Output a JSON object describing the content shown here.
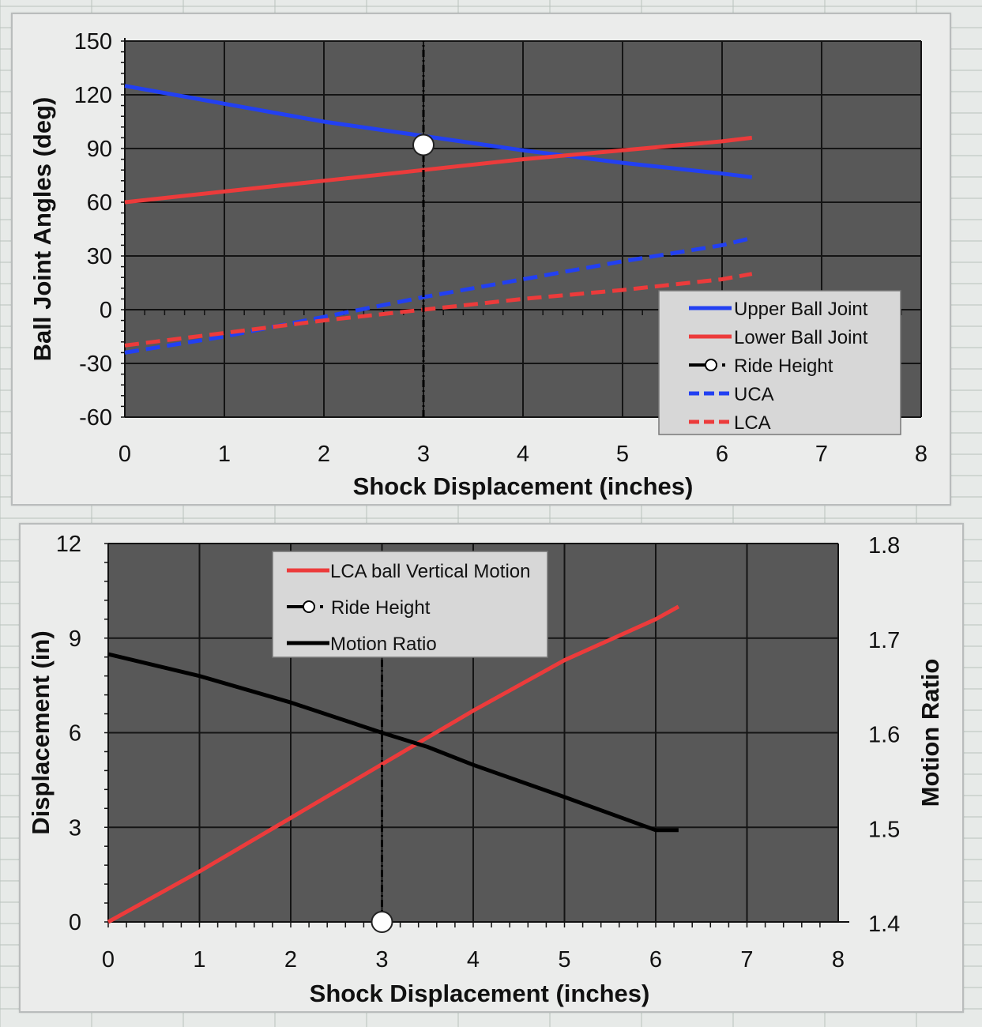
{
  "chart_data": [
    {
      "type": "line",
      "xlabel": "Shock Displacement (inches)",
      "ylabel": "Ball Joint Angles (deg)",
      "xlim": [
        0,
        8
      ],
      "ylim": [
        -60,
        150
      ],
      "xticks": [
        "0",
        "1",
        "2",
        "3",
        "4",
        "5",
        "6",
        "7",
        "8"
      ],
      "yticks": [
        "150",
        "120",
        "90",
        "60",
        "30",
        "0",
        "-30",
        "-60"
      ],
      "grid": true,
      "legend_position": "bottom-right",
      "series": [
        {
          "name": "Upper Ball Joint",
          "color": "#2240f2",
          "style": "solid",
          "x": [
            0,
            1,
            2,
            3,
            4,
            5,
            6,
            6.3
          ],
          "y": [
            125,
            115,
            105,
            97,
            89,
            82,
            76,
            74
          ]
        },
        {
          "name": "Lower Ball Joint",
          "color": "#ec3b3b",
          "style": "solid",
          "x": [
            0,
            1,
            2,
            3,
            4,
            5,
            6,
            6.3
          ],
          "y": [
            60,
            66,
            72,
            78,
            84,
            89,
            94,
            96
          ]
        },
        {
          "name": "Ride Height",
          "color": "#000000",
          "style": "dash-dot",
          "marker": "open-circle",
          "x": [
            3,
            3
          ],
          "y": [
            -60,
            150
          ],
          "marker_point": [
            3,
            92
          ]
        },
        {
          "name": "UCA",
          "color": "#2240f2",
          "style": "dashed",
          "x": [
            0,
            1,
            2,
            3,
            4,
            5,
            6,
            6.3
          ],
          "y": [
            -24,
            -15,
            -4,
            7,
            17,
            27,
            36,
            40
          ]
        },
        {
          "name": "LCA",
          "color": "#ec3b3b",
          "style": "dashed",
          "x": [
            0,
            1,
            2,
            3,
            4,
            5,
            6,
            6.3
          ],
          "y": [
            -20,
            -13,
            -6,
            0,
            6,
            11,
            17,
            20
          ]
        }
      ]
    },
    {
      "type": "line",
      "xlabel": "Shock Displacement (inches)",
      "ylabel": "Displacement (in)",
      "y2label": "Motion Ratio",
      "xlim": [
        0,
        8
      ],
      "ylim": [
        0,
        12
      ],
      "y2lim": [
        1.4,
        1.8
      ],
      "xticks": [
        "0",
        "1",
        "2",
        "3",
        "4",
        "5",
        "6",
        "7",
        "8"
      ],
      "yticks": [
        "12",
        "9",
        "6",
        "3",
        "0"
      ],
      "y2ticks": [
        "1.8",
        "1.7",
        "1.6",
        "1.5",
        "1.4"
      ],
      "grid": true,
      "legend_position": "top-center",
      "series": [
        {
          "name": "LCA ball Vertical Motion",
          "color": "#ec3b3b",
          "style": "solid",
          "axis": "left",
          "x": [
            0,
            1,
            2,
            3,
            4,
            5,
            6,
            6.25
          ],
          "y": [
            0,
            1.6,
            3.3,
            5.0,
            6.7,
            8.3,
            9.6,
            10.0
          ]
        },
        {
          "name": "Ride Height",
          "color": "#000000",
          "style": "dash-dot",
          "marker": "open-circle",
          "axis": "left",
          "x": [
            3,
            3
          ],
          "y": [
            0,
            8.4
          ],
          "marker_point": [
            3,
            0
          ]
        },
        {
          "name": "Motion Ratio",
          "color": "#000000",
          "style": "solid",
          "axis": "right",
          "x": [
            0,
            1,
            2,
            3,
            3.5,
            4,
            5,
            6,
            6.25
          ],
          "y": [
            1.683,
            1.66,
            1.632,
            1.6,
            1.585,
            1.566,
            1.532,
            1.497,
            1.497
          ]
        }
      ]
    }
  ]
}
